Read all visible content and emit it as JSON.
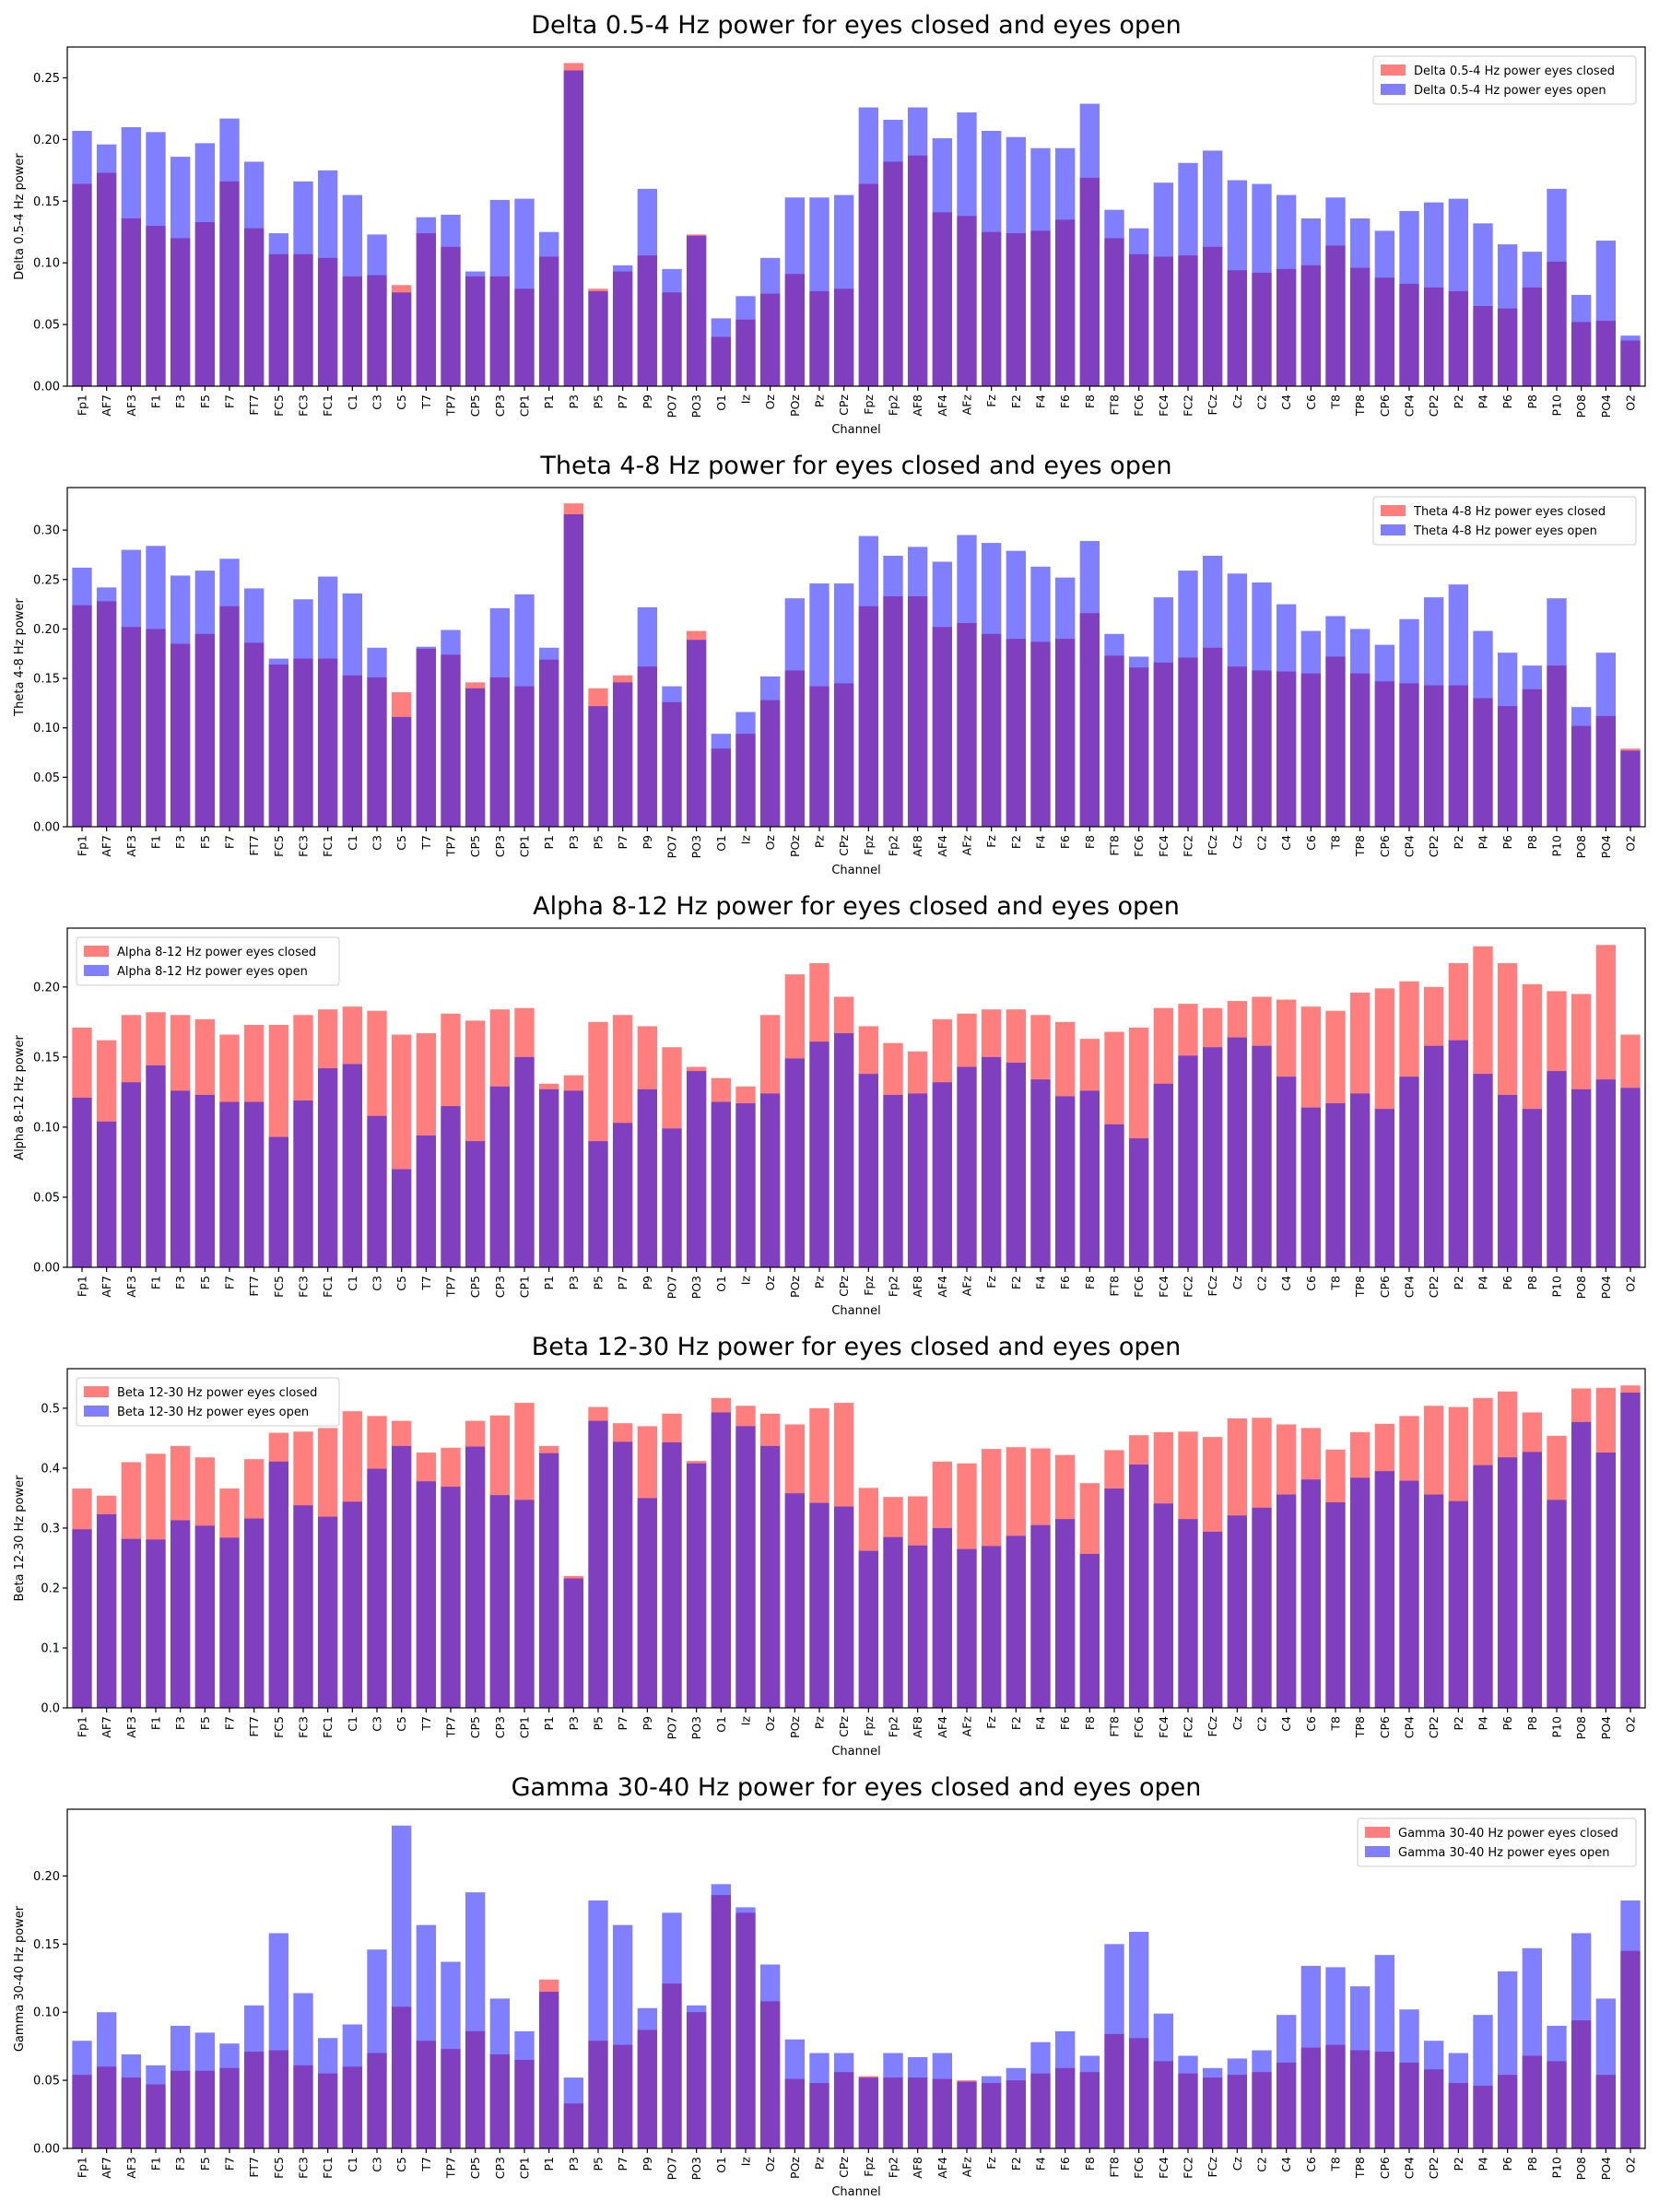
{
  "colors": {
    "closed": "#ff0000",
    "open": "#0000ff",
    "frame": "#000000"
  },
  "channels": [
    "Fp1",
    "AF7",
    "AF3",
    "F1",
    "F3",
    "F5",
    "F7",
    "FT7",
    "FC5",
    "FC3",
    "FC1",
    "C1",
    "C3",
    "C5",
    "T7",
    "TP7",
    "CP5",
    "CP3",
    "CP1",
    "P1",
    "P3",
    "P5",
    "P7",
    "P9",
    "PO7",
    "PO3",
    "O1",
    "Iz",
    "Oz",
    "POz",
    "Pz",
    "CPz",
    "Fpz",
    "Fp2",
    "AF8",
    "AF4",
    "AFz",
    "Fz",
    "F2",
    "F4",
    "F6",
    "F8",
    "FT8",
    "FC6",
    "FC4",
    "FC2",
    "FCz",
    "Cz",
    "C2",
    "C4",
    "C6",
    "T8",
    "TP8",
    "CP6",
    "CP4",
    "CP2",
    "P2",
    "P4",
    "P6",
    "P8",
    "P10",
    "PO8",
    "PO4",
    "O2"
  ],
  "chart_data": [
    {
      "type": "bar",
      "title": "Delta 0.5-4 Hz power for eyes closed and eyes open",
      "xlabel": "Channel",
      "ylabel": "Delta 0.5-4 Hz power",
      "ylim": [
        0,
        0.275
      ],
      "yticks": [
        0.0,
        0.05,
        0.1,
        0.15,
        0.2,
        0.25
      ],
      "ytick_labels": [
        "0.00",
        "0.05",
        "0.10",
        "0.15",
        "0.20",
        "0.25"
      ],
      "legend": "top-right",
      "series": [
        {
          "name": "Delta 0.5-4 Hz power eyes closed",
          "color_key": "closed",
          "values": [
            0.164,
            0.173,
            0.136,
            0.13,
            0.12,
            0.133,
            0.166,
            0.128,
            0.107,
            0.107,
            0.104,
            0.089,
            0.09,
            0.082,
            0.124,
            0.113,
            0.089,
            0.089,
            0.079,
            0.105,
            0.262,
            0.079,
            0.093,
            0.106,
            0.076,
            0.123,
            0.04,
            0.054,
            0.075,
            0.091,
            0.077,
            0.079,
            0.164,
            0.182,
            0.187,
            0.141,
            0.138,
            0.125,
            0.124,
            0.126,
            0.135,
            0.169,
            0.12,
            0.107,
            0.105,
            0.106,
            0.113,
            0.094,
            0.092,
            0.095,
            0.098,
            0.114,
            0.096,
            0.088,
            0.083,
            0.08,
            0.077,
            0.065,
            0.063,
            0.08,
            0.101,
            0.052,
            0.053,
            0.037
          ]
        },
        {
          "name": "Delta 0.5-4 Hz power eyes open",
          "color_key": "open",
          "values": [
            0.207,
            0.196,
            0.21,
            0.206,
            0.186,
            0.197,
            0.217,
            0.182,
            0.124,
            0.166,
            0.175,
            0.155,
            0.123,
            0.076,
            0.137,
            0.139,
            0.093,
            0.151,
            0.152,
            0.125,
            0.256,
            0.077,
            0.098,
            0.16,
            0.095,
            0.122,
            0.055,
            0.073,
            0.104,
            0.153,
            0.153,
            0.155,
            0.226,
            0.216,
            0.226,
            0.201,
            0.222,
            0.207,
            0.202,
            0.193,
            0.193,
            0.229,
            0.143,
            0.128,
            0.165,
            0.181,
            0.191,
            0.167,
            0.164,
            0.155,
            0.136,
            0.153,
            0.136,
            0.126,
            0.142,
            0.149,
            0.152,
            0.132,
            0.115,
            0.109,
            0.16,
            0.074,
            0.118,
            0.041
          ]
        }
      ]
    },
    {
      "type": "bar",
      "title": "Theta 4-8 Hz power for eyes closed and eyes open",
      "xlabel": "Channel",
      "ylabel": "Theta 4-8 Hz power",
      "ylim": [
        0,
        0.343
      ],
      "yticks": [
        0.0,
        0.05,
        0.1,
        0.15,
        0.2,
        0.25,
        0.3
      ],
      "ytick_labels": [
        "0.00",
        "0.05",
        "0.10",
        "0.15",
        "0.20",
        "0.25",
        "0.30"
      ],
      "legend": "top-right",
      "series": [
        {
          "name": "Theta 4-8 Hz power eyes closed",
          "color_key": "closed",
          "values": [
            0.224,
            0.228,
            0.202,
            0.2,
            0.185,
            0.195,
            0.223,
            0.186,
            0.164,
            0.17,
            0.17,
            0.153,
            0.151,
            0.136,
            0.18,
            0.174,
            0.146,
            0.151,
            0.142,
            0.169,
            0.327,
            0.14,
            0.153,
            0.162,
            0.126,
            0.198,
            0.079,
            0.094,
            0.128,
            0.158,
            0.142,
            0.145,
            0.223,
            0.233,
            0.233,
            0.202,
            0.206,
            0.195,
            0.19,
            0.187,
            0.19,
            0.216,
            0.173,
            0.161,
            0.166,
            0.171,
            0.181,
            0.162,
            0.158,
            0.157,
            0.155,
            0.172,
            0.155,
            0.147,
            0.145,
            0.143,
            0.143,
            0.13,
            0.122,
            0.139,
            0.163,
            0.102,
            0.112,
            0.079
          ]
        },
        {
          "name": "Theta 4-8 Hz power eyes open",
          "color_key": "open",
          "values": [
            0.262,
            0.242,
            0.28,
            0.284,
            0.254,
            0.259,
            0.271,
            0.241,
            0.17,
            0.23,
            0.253,
            0.236,
            0.181,
            0.111,
            0.182,
            0.199,
            0.14,
            0.221,
            0.235,
            0.181,
            0.316,
            0.122,
            0.146,
            0.222,
            0.142,
            0.189,
            0.094,
            0.116,
            0.152,
            0.231,
            0.246,
            0.246,
            0.294,
            0.274,
            0.283,
            0.268,
            0.295,
            0.287,
            0.279,
            0.263,
            0.252,
            0.289,
            0.195,
            0.172,
            0.232,
            0.259,
            0.274,
            0.256,
            0.247,
            0.225,
            0.198,
            0.213,
            0.2,
            0.184,
            0.21,
            0.232,
            0.245,
            0.198,
            0.176,
            0.163,
            0.231,
            0.121,
            0.176,
            0.077
          ]
        }
      ]
    },
    {
      "type": "bar",
      "title": "Alpha 8-12 Hz power for eyes closed and eyes open",
      "xlabel": "Channel",
      "ylabel": "Alpha 8-12 Hz power",
      "ylim": [
        0,
        0.242
      ],
      "yticks": [
        0.0,
        0.05,
        0.1,
        0.15,
        0.2
      ],
      "ytick_labels": [
        "0.00",
        "0.05",
        "0.10",
        "0.15",
        "0.20"
      ],
      "legend": "top-left",
      "series": [
        {
          "name": "Alpha 8-12 Hz power eyes closed",
          "color_key": "closed",
          "values": [
            0.171,
            0.162,
            0.18,
            0.182,
            0.18,
            0.177,
            0.166,
            0.173,
            0.173,
            0.18,
            0.184,
            0.186,
            0.183,
            0.166,
            0.167,
            0.181,
            0.176,
            0.184,
            0.185,
            0.131,
            0.137,
            0.175,
            0.18,
            0.172,
            0.157,
            0.143,
            0.135,
            0.129,
            0.18,
            0.209,
            0.217,
            0.193,
            0.172,
            0.16,
            0.154,
            0.177,
            0.181,
            0.184,
            0.184,
            0.18,
            0.175,
            0.163,
            0.168,
            0.171,
            0.185,
            0.188,
            0.185,
            0.19,
            0.193,
            0.191,
            0.186,
            0.183,
            0.196,
            0.199,
            0.204,
            0.2,
            0.217,
            0.229,
            0.217,
            0.202,
            0.197,
            0.195,
            0.23,
            0.166
          ]
        },
        {
          "name": "Alpha 8-12 Hz power eyes open",
          "color_key": "open",
          "values": [
            0.121,
            0.104,
            0.132,
            0.144,
            0.126,
            0.123,
            0.118,
            0.118,
            0.093,
            0.119,
            0.142,
            0.145,
            0.108,
            0.07,
            0.094,
            0.115,
            0.09,
            0.129,
            0.15,
            0.127,
            0.126,
            0.09,
            0.103,
            0.127,
            0.099,
            0.14,
            0.118,
            0.117,
            0.124,
            0.149,
            0.161,
            0.167,
            0.138,
            0.123,
            0.124,
            0.132,
            0.143,
            0.15,
            0.146,
            0.134,
            0.122,
            0.126,
            0.102,
            0.092,
            0.131,
            0.151,
            0.157,
            0.164,
            0.158,
            0.136,
            0.114,
            0.117,
            0.124,
            0.113,
            0.136,
            0.158,
            0.162,
            0.138,
            0.123,
            0.113,
            0.14,
            0.127,
            0.134,
            0.128
          ]
        }
      ]
    },
    {
      "type": "bar",
      "title": "Beta 12-30 Hz power for eyes closed and eyes open",
      "xlabel": "Channel",
      "ylabel": "Beta 12-30 Hz power",
      "ylim": [
        0,
        0.566
      ],
      "yticks": [
        0.0,
        0.1,
        0.2,
        0.3,
        0.4,
        0.5
      ],
      "ytick_labels": [
        "0.0",
        "0.1",
        "0.2",
        "0.3",
        "0.4",
        "0.5"
      ],
      "legend": "top-left",
      "series": [
        {
          "name": "Beta 12-30 Hz power eyes closed",
          "color_key": "closed",
          "values": [
            0.366,
            0.354,
            0.41,
            0.424,
            0.437,
            0.418,
            0.366,
            0.415,
            0.459,
            0.461,
            0.467,
            0.495,
            0.487,
            0.479,
            0.426,
            0.434,
            0.479,
            0.488,
            0.509,
            0.437,
            0.22,
            0.502,
            0.475,
            0.47,
            0.491,
            0.412,
            0.517,
            0.504,
            0.491,
            0.473,
            0.5,
            0.509,
            0.367,
            0.352,
            0.353,
            0.411,
            0.408,
            0.432,
            0.435,
            0.433,
            0.422,
            0.375,
            0.43,
            0.455,
            0.46,
            0.461,
            0.452,
            0.483,
            0.484,
            0.473,
            0.467,
            0.431,
            0.46,
            0.474,
            0.487,
            0.504,
            0.502,
            0.517,
            0.528,
            0.493,
            0.454,
            0.533,
            0.534,
            0.538
          ]
        },
        {
          "name": "Beta 12-30 Hz power eyes open",
          "color_key": "open",
          "values": [
            0.298,
            0.323,
            0.282,
            0.281,
            0.313,
            0.304,
            0.284,
            0.316,
            0.411,
            0.338,
            0.319,
            0.344,
            0.399,
            0.437,
            0.378,
            0.369,
            0.436,
            0.355,
            0.347,
            0.425,
            0.216,
            0.479,
            0.444,
            0.35,
            0.443,
            0.408,
            0.493,
            0.47,
            0.437,
            0.358,
            0.342,
            0.336,
            0.262,
            0.285,
            0.271,
            0.3,
            0.265,
            0.27,
            0.287,
            0.305,
            0.315,
            0.257,
            0.366,
            0.406,
            0.341,
            0.315,
            0.294,
            0.321,
            0.334,
            0.356,
            0.381,
            0.343,
            0.384,
            0.395,
            0.379,
            0.356,
            0.345,
            0.405,
            0.418,
            0.427,
            0.347,
            0.477,
            0.426,
            0.526
          ]
        }
      ]
    },
    {
      "type": "bar",
      "title": "Gamma 30-40 Hz power for eyes closed and eyes open",
      "xlabel": "Channel",
      "ylabel": "Gamma 30-40 Hz power",
      "ylim": [
        0,
        0.249
      ],
      "yticks": [
        0.0,
        0.05,
        0.1,
        0.15,
        0.2
      ],
      "ytick_labels": [
        "0.00",
        "0.05",
        "0.10",
        "0.15",
        "0.20"
      ],
      "legend": "top-right",
      "series": [
        {
          "name": "Gamma 30-40 Hz power eyes closed",
          "color_key": "closed",
          "values": [
            0.054,
            0.06,
            0.052,
            0.047,
            0.057,
            0.057,
            0.059,
            0.071,
            0.072,
            0.061,
            0.055,
            0.06,
            0.07,
            0.104,
            0.079,
            0.073,
            0.086,
            0.069,
            0.065,
            0.124,
            0.033,
            0.079,
            0.076,
            0.087,
            0.121,
            0.1,
            0.186,
            0.173,
            0.108,
            0.051,
            0.048,
            0.056,
            0.053,
            0.052,
            0.052,
            0.051,
            0.05,
            0.048,
            0.05,
            0.055,
            0.059,
            0.056,
            0.084,
            0.081,
            0.064,
            0.055,
            0.052,
            0.054,
            0.056,
            0.063,
            0.074,
            0.076,
            0.072,
            0.071,
            0.063,
            0.058,
            0.048,
            0.046,
            0.054,
            0.068,
            0.064,
            0.094,
            0.054,
            0.145
          ]
        },
        {
          "name": "Gamma 30-40 Hz power eyes open",
          "color_key": "open",
          "values": [
            0.079,
            0.1,
            0.069,
            0.061,
            0.09,
            0.085,
            0.077,
            0.105,
            0.158,
            0.114,
            0.081,
            0.091,
            0.146,
            0.237,
            0.164,
            0.137,
            0.188,
            0.11,
            0.086,
            0.115,
            0.052,
            0.182,
            0.164,
            0.103,
            0.173,
            0.105,
            0.194,
            0.177,
            0.135,
            0.08,
            0.07,
            0.07,
            0.052,
            0.07,
            0.067,
            0.07,
            0.049,
            0.053,
            0.059,
            0.078,
            0.086,
            0.068,
            0.15,
            0.159,
            0.099,
            0.068,
            0.059,
            0.066,
            0.072,
            0.098,
            0.134,
            0.133,
            0.119,
            0.142,
            0.102,
            0.079,
            0.07,
            0.098,
            0.13,
            0.147,
            0.09,
            0.158,
            0.11,
            0.182
          ]
        }
      ]
    }
  ]
}
